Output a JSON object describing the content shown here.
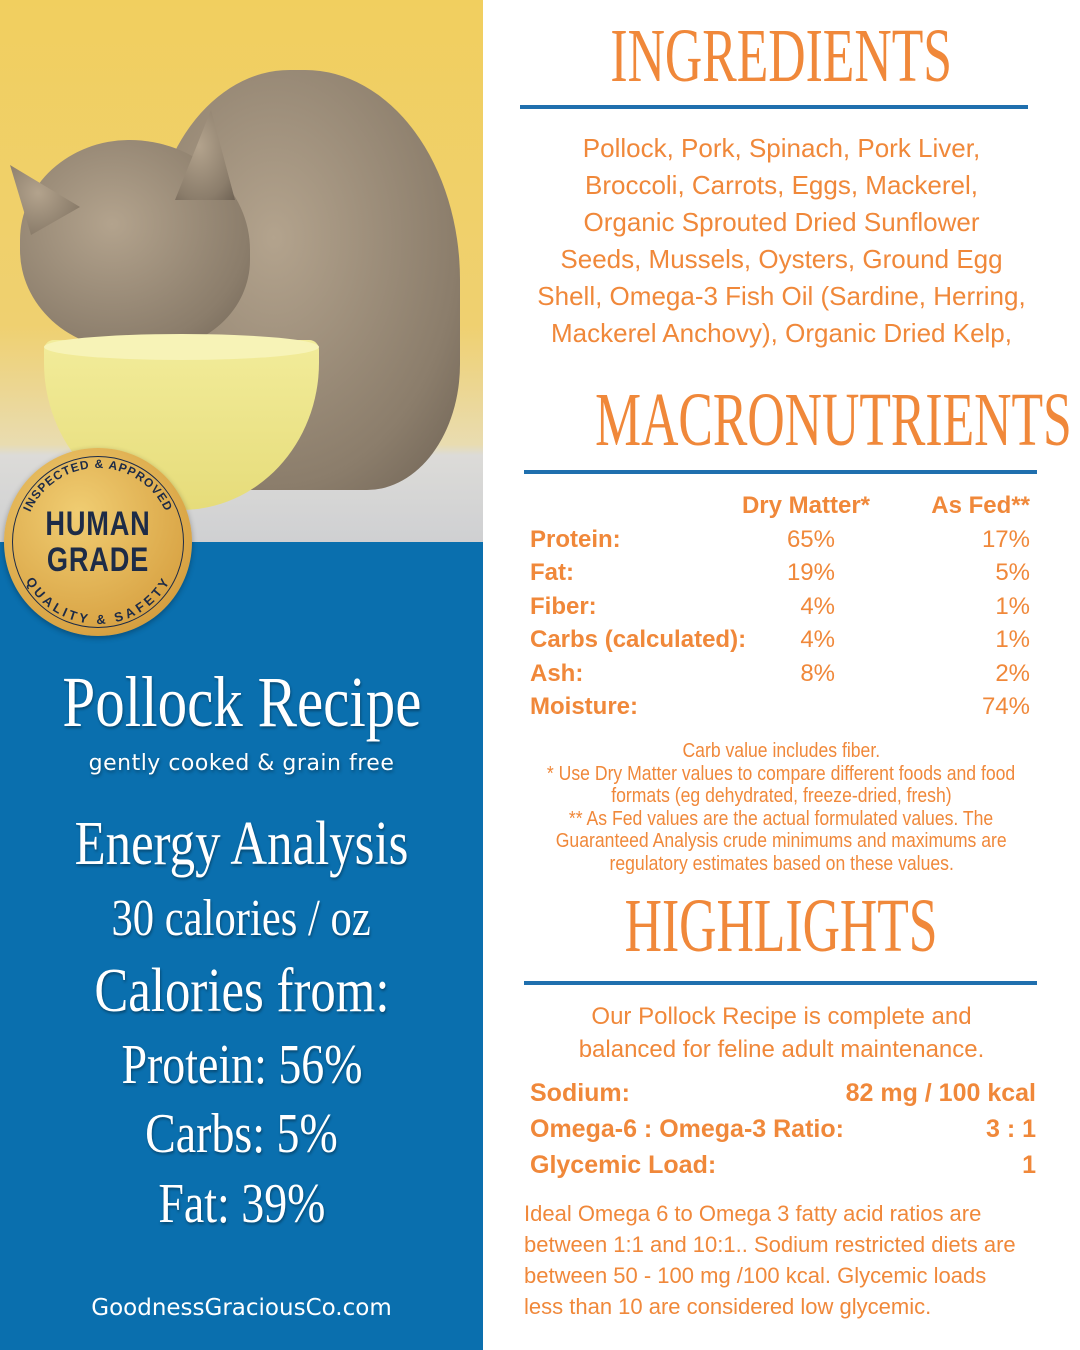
{
  "colors": {
    "accent": "#f0883a",
    "blue": "#0a6fae",
    "seal": "#d9a445"
  },
  "photo": {
    "subject": "cat eating from a yellow bowl"
  },
  "seal": {
    "top_text": "INSPECTED & APPROVED",
    "main_line1": "HUMAN",
    "main_line2": "GRADE",
    "bottom_text": "QUALITY & SAFETY"
  },
  "left": {
    "title": "Pollock Recipe",
    "subtitle": "gently cooked & grain free",
    "energy_heading": "Energy Analysis",
    "calories": "30 calories / oz",
    "calories_from": "Calories from:",
    "protein": "Protein:  56%",
    "carbs": "Carbs:  5%",
    "fat": "Fat: 39%",
    "website": "GoodnessGraciousCo.com"
  },
  "ingredients": {
    "heading": "INGREDIENTS",
    "lines": [
      "Pollock, Pork, Spinach, Pork Liver,",
      "Broccoli, Carrots, Eggs, Mackerel,",
      "Organic Sprouted Dried Sunflower",
      "Seeds, Mussels, Oysters, Ground Egg",
      "Shell, Omega-3 Fish Oil (Sardine, Herring,",
      "Mackerel Anchovy), Organic Dried Kelp,"
    ]
  },
  "macros": {
    "heading": "MACRONUTRIENTS",
    "col_dry": "Dry Matter*",
    "col_fed": "As Fed**",
    "rows": [
      {
        "label": "Protein:",
        "dry": "65%",
        "fed": "17%"
      },
      {
        "label": "Fat:",
        "dry": "19%",
        "fed": "5%"
      },
      {
        "label": "Fiber:",
        "dry": "4%",
        "fed": "1%"
      },
      {
        "label": "Carbs (calculated):",
        "dry": "4%",
        "fed": "1%"
      },
      {
        "label": "Ash:",
        "dry": "8%",
        "fed": "2%"
      },
      {
        "label": "Moisture:",
        "dry": "",
        "fed": "74%"
      }
    ],
    "notes": [
      "Carb value includes fiber.",
      "* Use Dry Matter values to compare different foods and food",
      "formats (eg dehydrated, freeze-dried, fresh)",
      "** As Fed values are the actual formulated values.  The",
      "Guaranteed Analysis crude minimums and maximums are",
      "regulatory estimates based on these values."
    ]
  },
  "highlights": {
    "heading": "HIGHLIGHTS",
    "intro": [
      "Our Pollock Recipe is complete and",
      "balanced for feline adult maintenance."
    ],
    "rows": [
      {
        "label": "Sodium:",
        "value": "82 mg / 100 kcal"
      },
      {
        "label": "Omega-6 : Omega-3 Ratio:",
        "value": "3 : 1"
      },
      {
        "label": "Glycemic Load:",
        "value": "1"
      }
    ],
    "footer": [
      "Ideal Omega 6 to Omega 3 fatty acid ratios are",
      "between 1:1 and 10:1.. Sodium restricted diets are",
      "between 50 - 100 mg /100 kcal. Glycemic loads",
      "less than 10 are considered low glycemic."
    ]
  }
}
